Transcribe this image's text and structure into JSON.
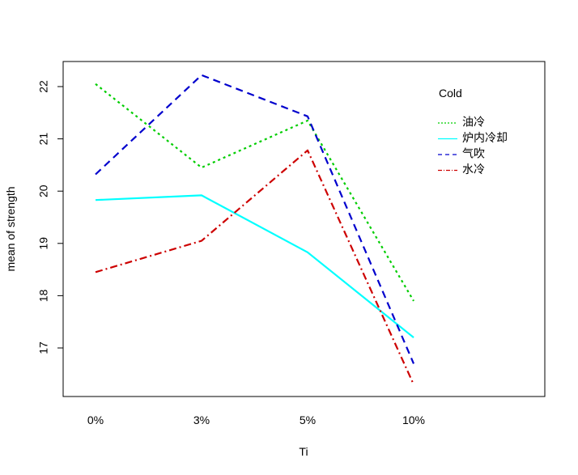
{
  "chart_data": {
    "type": "line",
    "title": "",
    "xlabel": "Ti",
    "ylabel": "mean of  strength",
    "categories": [
      "0%",
      "3%",
      "5%",
      "10%"
    ],
    "yticks": [
      17,
      18,
      19,
      20,
      21,
      22
    ],
    "ylim": [
      16.1,
      22.7
    ],
    "grid": false,
    "legend": {
      "title": "Cold",
      "placement": "top-right",
      "entries": [
        "油冷",
        "炉内冷却",
        "气吹",
        "水冷"
      ]
    },
    "series": [
      {
        "name": "油冷",
        "values": [
          22.05,
          20.45,
          21.35,
          17.9
        ],
        "color": "#00CD00",
        "dash": "3,4"
      },
      {
        "name": "炉内冷却",
        "values": [
          19.83,
          19.92,
          18.83,
          17.2
        ],
        "color": "#00FFFF",
        "dash": ""
      },
      {
        "name": "气吹",
        "values": [
          20.32,
          22.22,
          21.43,
          16.7
        ],
        "color": "#0000CD",
        "dash": "9,6"
      },
      {
        "name": "水冷",
        "values": [
          18.45,
          19.05,
          20.78,
          16.3
        ],
        "color": "#CD0000",
        "dash": "9,4,2,4"
      }
    ]
  }
}
